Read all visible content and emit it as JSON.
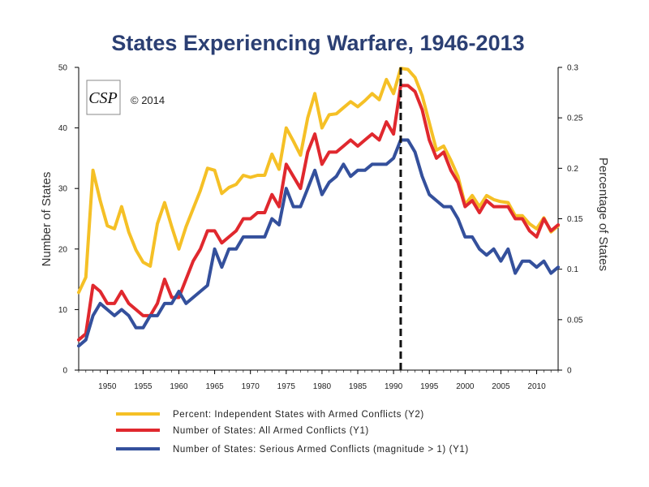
{
  "chart_data": {
    "type": "line",
    "title": "States Experiencing Warfare, 1946-2013",
    "ylabel": "Number of States",
    "y2label": "Percentage of States",
    "xlim": [
      1946,
      2013
    ],
    "ylim": [
      0,
      50
    ],
    "y2lim": [
      0,
      0.3
    ],
    "x_ticks": [
      "1950",
      "1955",
      "1960",
      "1965",
      "1970",
      "1975",
      "1980",
      "1985",
      "1990",
      "1995",
      "2000",
      "2005",
      "2010"
    ],
    "y_ticks": [
      "0",
      "10",
      "20",
      "30",
      "40",
      "50"
    ],
    "y2_ticks": [
      "0",
      "0.05",
      "0.1",
      "0.15",
      "0.2",
      "0.25",
      "0.3"
    ],
    "reference_line": {
      "x": 1991,
      "style": "dashed"
    },
    "copyright": "© 2014",
    "logo": "CSP",
    "x": [
      1946,
      1947,
      1948,
      1949,
      1950,
      1951,
      1952,
      1953,
      1954,
      1955,
      1956,
      1957,
      1958,
      1959,
      1960,
      1961,
      1962,
      1963,
      1964,
      1965,
      1966,
      1967,
      1968,
      1969,
      1970,
      1971,
      1972,
      1973,
      1974,
      1975,
      1976,
      1977,
      1978,
      1979,
      1980,
      1981,
      1982,
      1983,
      1984,
      1985,
      1986,
      1987,
      1988,
      1989,
      1990,
      1991,
      1992,
      1993,
      1994,
      1995,
      1996,
      1997,
      1998,
      1999,
      2000,
      2001,
      2002,
      2003,
      2004,
      2005,
      2006,
      2007,
      2008,
      2009,
      2010,
      2011,
      2012,
      2013
    ],
    "series": [
      {
        "name": "Percent: Independent States with Armed Conflicts (Y2)",
        "axis": "y2",
        "color": "#f5c026",
        "values": [
          0.077,
          0.092,
          0.198,
          0.168,
          0.143,
          0.14,
          0.162,
          0.137,
          0.119,
          0.107,
          0.103,
          0.145,
          0.166,
          0.142,
          0.12,
          0.142,
          0.16,
          0.178,
          0.2,
          0.198,
          0.175,
          0.181,
          0.184,
          0.193,
          0.191,
          0.193,
          0.193,
          0.214,
          0.199,
          0.24,
          0.227,
          0.213,
          0.25,
          0.274,
          0.24,
          0.253,
          0.254,
          0.26,
          0.266,
          0.261,
          0.267,
          0.274,
          0.268,
          0.288,
          0.274,
          0.299,
          0.298,
          0.29,
          0.272,
          0.245,
          0.218,
          0.222,
          0.208,
          0.192,
          0.164,
          0.173,
          0.162,
          0.173,
          0.169,
          0.167,
          0.166,
          0.153,
          0.153,
          0.145,
          0.14,
          0.151,
          0.137,
          0.143
        ]
      },
      {
        "name": "Number of States: All Armed Conflicts (Y1)",
        "axis": "y1",
        "color": "#e0282e",
        "values": [
          5,
          6,
          14,
          13,
          11,
          11,
          13,
          11,
          10,
          9,
          9,
          11,
          15,
          12,
          12,
          15,
          18,
          20,
          23,
          23,
          21,
          22,
          23,
          25,
          25,
          26,
          26,
          29,
          27,
          34,
          32,
          30,
          36,
          39,
          34,
          36,
          36,
          37,
          38,
          37,
          38,
          39,
          38,
          41,
          39,
          47,
          47,
          46,
          43,
          38,
          35,
          36,
          33,
          31,
          27,
          28,
          26,
          28,
          27,
          27,
          27,
          25,
          25,
          23,
          22,
          25,
          23,
          24
        ]
      },
      {
        "name": "Number of States: Serious Armed Conflicts (magnitude > 1) (Y1)",
        "axis": "y1",
        "color": "#34509c",
        "values": [
          4,
          5,
          9,
          11,
          10,
          9,
          10,
          9,
          7,
          7,
          9,
          9,
          11,
          11,
          13,
          11,
          12,
          13,
          14,
          20,
          17,
          20,
          20,
          22,
          22,
          22,
          22,
          25,
          24,
          30,
          27,
          27,
          30,
          33,
          29,
          31,
          32,
          34,
          32,
          33,
          33,
          34,
          34,
          34,
          35,
          38,
          38,
          36,
          32,
          29,
          28,
          27,
          27,
          25,
          22,
          22,
          20,
          19,
          20,
          18,
          20,
          16,
          18,
          18,
          17,
          18,
          16,
          17
        ]
      }
    ]
  }
}
